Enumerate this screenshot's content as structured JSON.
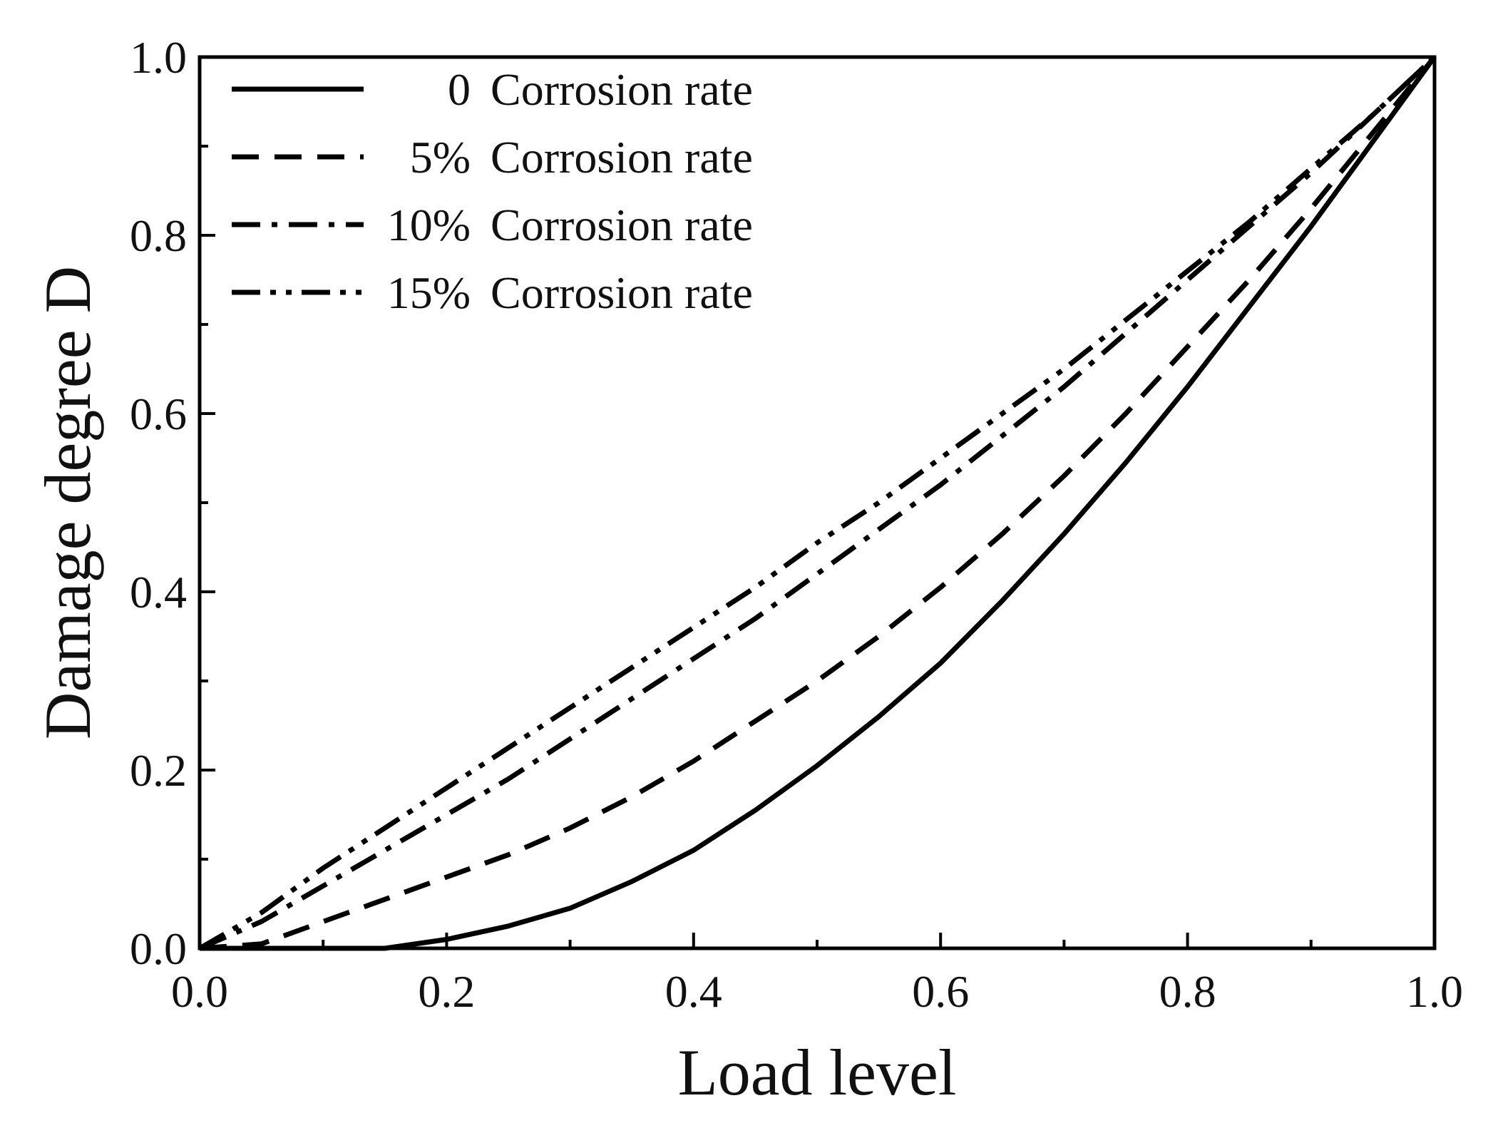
{
  "chart_data": {
    "type": "line",
    "title": "",
    "xlabel": "Load level",
    "ylabel": "Damage degree D",
    "xlim": [
      0.0,
      1.0
    ],
    "ylim": [
      0.0,
      1.0
    ],
    "xticks": [
      "0.0",
      "0.2",
      "0.4",
      "0.6",
      "0.8",
      "1.0"
    ],
    "yticks": [
      "0.0",
      "0.2",
      "0.4",
      "0.6",
      "0.8",
      "1.0"
    ],
    "grid": false,
    "legend_position": "top-left",
    "x": [
      0.0,
      0.05,
      0.1,
      0.15,
      0.2,
      0.25,
      0.3,
      0.35,
      0.4,
      0.45,
      0.5,
      0.55,
      0.6,
      0.65,
      0.7,
      0.75,
      0.8,
      0.85,
      0.9,
      0.95,
      1.0
    ],
    "series": [
      {
        "name": "Corrosion rate",
        "prefix": "0",
        "style": "solid",
        "values": [
          0.0,
          0.0,
          0.0,
          0.0,
          0.01,
          0.025,
          0.045,
          0.075,
          0.11,
          0.155,
          0.205,
          0.26,
          0.32,
          0.39,
          0.465,
          0.545,
          0.63,
          0.72,
          0.81,
          0.905,
          1.0
        ]
      },
      {
        "name": "Corrosion rate",
        "prefix": "5%",
        "style": "dash",
        "values": [
          0.0,
          0.005,
          0.03,
          0.055,
          0.08,
          0.105,
          0.135,
          0.17,
          0.21,
          0.255,
          0.3,
          0.35,
          0.405,
          0.465,
          0.53,
          0.6,
          0.675,
          0.75,
          0.83,
          0.915,
          1.0
        ]
      },
      {
        "name": "Corrosion rate",
        "prefix": "10%",
        "style": "dashdot",
        "values": [
          0.0,
          0.03,
          0.07,
          0.11,
          0.15,
          0.19,
          0.235,
          0.28,
          0.325,
          0.37,
          0.42,
          0.47,
          0.52,
          0.575,
          0.63,
          0.69,
          0.75,
          0.81,
          0.87,
          0.935,
          1.0
        ]
      },
      {
        "name": "Corrosion rate",
        "prefix": "15%",
        "style": "dashdotdot",
        "values": [
          0.0,
          0.04,
          0.09,
          0.135,
          0.18,
          0.225,
          0.27,
          0.315,
          0.36,
          0.405,
          0.455,
          0.5,
          0.55,
          0.6,
          0.65,
          0.705,
          0.76,
          0.815,
          0.875,
          0.935,
          1.0
        ]
      }
    ]
  }
}
